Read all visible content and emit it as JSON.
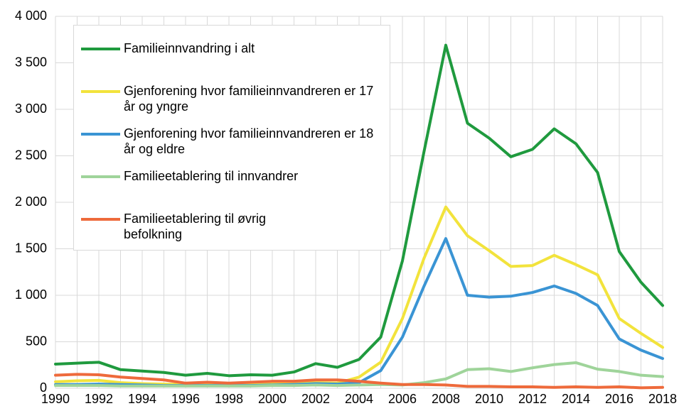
{
  "chart_data": {
    "type": "line",
    "x": [
      1990,
      1991,
      1992,
      1993,
      1994,
      1995,
      1996,
      1997,
      1998,
      1999,
      2000,
      2001,
      2002,
      2003,
      2004,
      2005,
      2006,
      2007,
      2008,
      2009,
      2010,
      2011,
      2012,
      2013,
      2014,
      2015,
      2016,
      2017,
      2018
    ],
    "xlim": [
      1990,
      2018
    ],
    "xticks": [
      1990,
      1992,
      1994,
      1996,
      1998,
      2000,
      2002,
      2004,
      2006,
      2008,
      2010,
      2012,
      2014,
      2016,
      2018
    ],
    "ylim": [
      0,
      4000
    ],
    "yticks": [
      0,
      500,
      {
        "value": 1000,
        "label": "1 000"
      },
      {
        "value": 1500,
        "label": "1 500"
      },
      {
        "value": 2000,
        "label": "2 000"
      },
      {
        "value": 2500,
        "label": "2 500"
      },
      {
        "value": 3000,
        "label": "3 000"
      },
      {
        "value": 3500,
        "label": "3 500"
      },
      {
        "value": 4000,
        "label": "4 000"
      }
    ],
    "grid": true,
    "legend": "upper left",
    "series": [
      {
        "name": "Familieinnvandring i alt",
        "color": "#1f9a3e",
        "values": [
          260,
          270,
          280,
          200,
          185,
          170,
          140,
          160,
          135,
          145,
          140,
          175,
          265,
          225,
          310,
          550,
          1370,
          2550,
          3690,
          2850,
          2690,
          2490,
          2570,
          2790,
          2630,
          2320,
          1470,
          1140,
          890
        ]
      },
      {
        "name": "Gjenforening hvor familieinnvandreren er 17 år og yngre",
        "color": "#f2e33c",
        "values": [
          70,
          80,
          85,
          60,
          50,
          45,
          40,
          45,
          40,
          45,
          50,
          55,
          60,
          55,
          120,
          280,
          750,
          1400,
          1950,
          1640,
          1480,
          1310,
          1320,
          1430,
          1330,
          1220,
          750,
          590,
          440
        ]
      },
      {
        "name": "Gjenforening hvor familieinnvandreren er 18 år og eldre",
        "color": "#3a94d4",
        "values": [
          40,
          40,
          45,
          40,
          35,
          30,
          30,
          30,
          30,
          30,
          35,
          40,
          50,
          45,
          60,
          190,
          550,
          1100,
          1610,
          1000,
          980,
          990,
          1030,
          1100,
          1020,
          890,
          530,
          410,
          320
        ]
      },
      {
        "name": "Familieetablering til innvandrer",
        "color": "#9fd49a",
        "values": [
          30,
          30,
          30,
          25,
          25,
          25,
          25,
          25,
          25,
          25,
          30,
          30,
          35,
          30,
          35,
          40,
          35,
          60,
          100,
          200,
          210,
          180,
          220,
          255,
          275,
          205,
          180,
          140,
          125
        ]
      },
      {
        "name": "Familieetablering til øvrig befolkning",
        "color": "#ee6a3b",
        "values": [
          140,
          150,
          145,
          120,
          105,
          90,
          55,
          65,
          55,
          65,
          75,
          75,
          90,
          90,
          75,
          55,
          40,
          40,
          35,
          20,
          20,
          15,
          15,
          10,
          15,
          10,
          15,
          5,
          10
        ]
      }
    ]
  }
}
